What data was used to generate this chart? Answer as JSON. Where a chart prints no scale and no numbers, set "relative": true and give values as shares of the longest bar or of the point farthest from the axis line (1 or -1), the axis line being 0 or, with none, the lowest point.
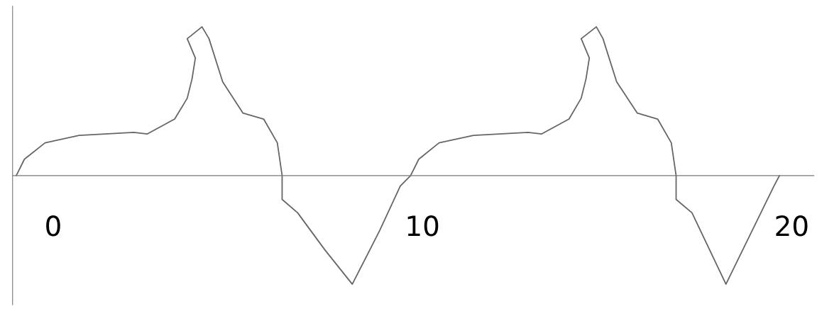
{
  "chart_data": {
    "type": "line",
    "relative": true,
    "color": "#666666",
    "xlim": [
      -1.1,
      20.6
    ],
    "xticks": [
      0,
      10,
      20
    ],
    "tick_labels": "x",
    "grid": false,
    "legend": false,
    "marker": "none",
    "line_style": "solid",
    "x": [
      -1.0,
      -0.78,
      -0.22,
      0.7,
      2.18,
      2.55,
      3.29,
      3.63,
      3.76,
      3.85,
      3.63,
      4.03,
      4.22,
      4.59,
      5.14,
      5.7,
      6.07,
      6.2,
      6.2,
      6.62,
      7.36,
      8.1,
      8.84,
      9.4,
      9.68,
      9.9,
      10.45,
      11.38,
      12.86,
      13.23,
      13.97,
      14.3,
      14.43,
      14.52,
      14.3,
      14.71,
      14.89,
      15.26,
      15.82,
      16.37,
      16.74,
      16.87,
      16.87,
      17.3,
      18.22,
      19.52,
      19.67
    ],
    "values": [
      0,
      0.11,
      0.22,
      0.27,
      0.29,
      0.28,
      0.38,
      0.52,
      0.65,
      0.79,
      0.92,
      1.0,
      0.92,
      0.63,
      0.42,
      0.38,
      0.22,
      0,
      -0.16,
      -0.25,
      -0.5,
      -0.73,
      -0.37,
      -0.07,
      0,
      0.11,
      0.22,
      0.27,
      0.29,
      0.28,
      0.38,
      0.52,
      0.65,
      0.79,
      0.92,
      1.0,
      0.92,
      0.63,
      0.42,
      0.38,
      0.22,
      0,
      -0.16,
      -0.25,
      -0.73,
      -0.07,
      0
    ]
  }
}
